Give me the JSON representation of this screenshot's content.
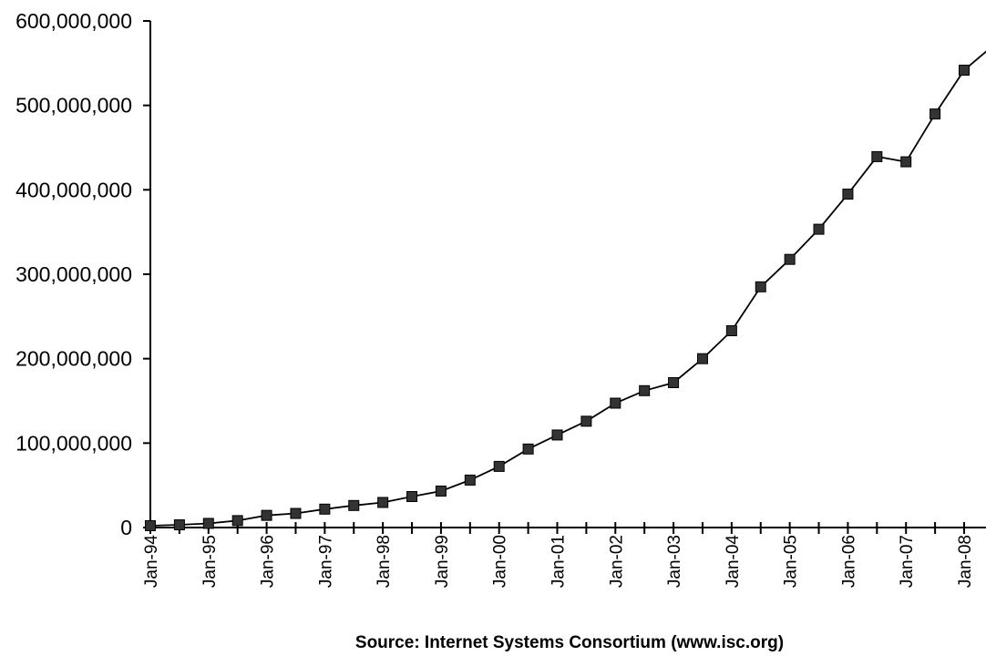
{
  "chart_data": {
    "type": "line",
    "title": "",
    "xlabel": "",
    "ylabel": "",
    "source": "Source: Internet Systems Consortium (www.isc.org)",
    "ylim": [
      0,
      600000000
    ],
    "yticks": [
      0,
      100000000,
      200000000,
      300000000,
      400000000,
      500000000,
      600000000
    ],
    "ytick_labels": [
      "0",
      "100,000,000",
      "200,000,000",
      "300,000,000",
      "400,000,000",
      "500,000,000",
      "600,000,000"
    ],
    "xtick_labels": [
      "Jan-94",
      "Jan-95",
      "Jan-96",
      "Jan-97",
      "Jan-98",
      "Jan-99",
      "Jan-00",
      "Jan-01",
      "Jan-02",
      "Jan-03",
      "Jan-04",
      "Jan-05",
      "Jan-06",
      "Jan-07",
      "Jan-08"
    ],
    "grid": false,
    "marker": "square",
    "line_color": "#000000",
    "marker_color": "#333333",
    "x": [
      "Jan-94",
      "Jul-94",
      "Jan-95",
      "Jul-95",
      "Jan-96",
      "Jul-96",
      "Jan-97",
      "Jul-97",
      "Jan-98",
      "Jul-98",
      "Jan-99",
      "Jul-99",
      "Jan-00",
      "Jul-00",
      "Jan-01",
      "Jul-01",
      "Jan-02",
      "Jul-02",
      "Jan-03",
      "Jul-03",
      "Jan-04",
      "Jul-04",
      "Jan-05",
      "Jul-05",
      "Jan-06",
      "Jul-06",
      "Jan-07",
      "Jul-07",
      "Jan-08",
      "Jul-08"
    ],
    "series": [
      {
        "values": [
          2200000,
          3200000,
          4900000,
          8200000,
          14400000,
          16700000,
          21800000,
          26100000,
          29700000,
          36700000,
          43200000,
          56200000,
          72400000,
          93000000,
          109600000,
          125900000,
          147300000,
          162100000,
          171600000,
          200000000,
          233100000,
          285100000,
          317600000,
          353300000,
          394900000,
          439300000,
          433200000,
          489800000,
          541700000,
          570900000
        ]
      }
    ]
  }
}
